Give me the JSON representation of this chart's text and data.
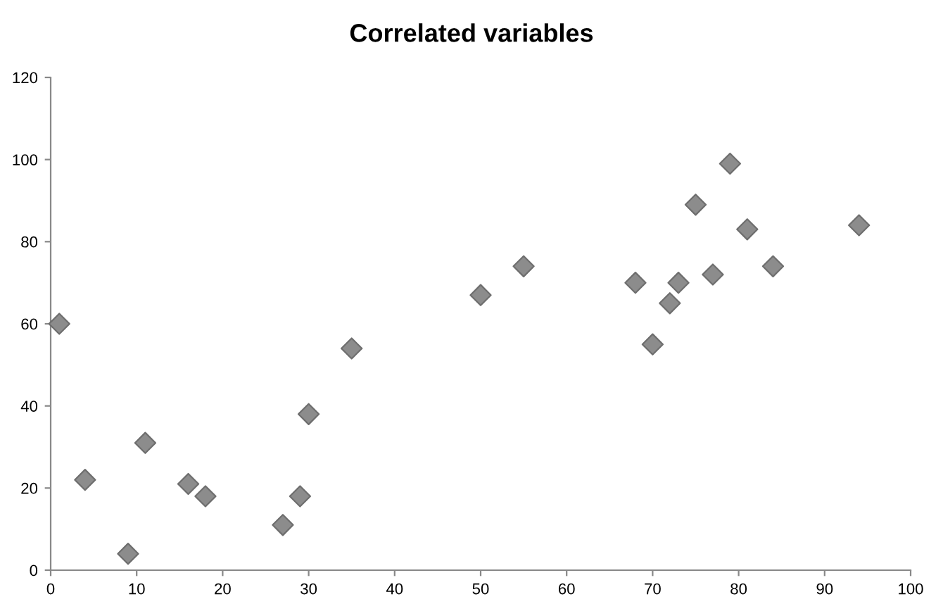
{
  "chart_data": {
    "type": "scatter",
    "title": "Correlated variables",
    "x": [
      1,
      4,
      9,
      11,
      16,
      18,
      27,
      29,
      30,
      35,
      50,
      55,
      68,
      70,
      72,
      73,
      75,
      77,
      79,
      81,
      84,
      94
    ],
    "values": [
      60,
      22,
      4,
      31,
      21,
      18,
      11,
      18,
      38,
      54,
      67,
      74,
      70,
      55,
      65,
      70,
      89,
      72,
      99,
      83,
      74,
      84
    ],
    "color": "#8c8c8c",
    "marker": "diamond",
    "xlim": [
      0,
      100
    ],
    "xticks": [
      0,
      10,
      20,
      30,
      40,
      50,
      60,
      70,
      80,
      90,
      100
    ],
    "ylim": [
      0,
      120
    ],
    "yticks": [
      0,
      20,
      40,
      60,
      80,
      100,
      120
    ],
    "grid": false
  }
}
